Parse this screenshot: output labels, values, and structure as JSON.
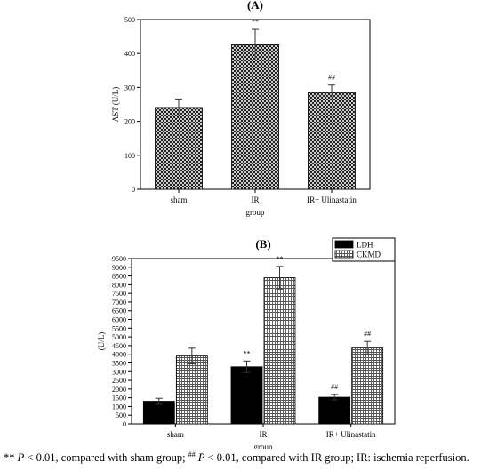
{
  "chart_data": [
    {
      "type": "bar",
      "panel_label": "(A)",
      "categories": [
        "sham",
        "IR",
        "IR+ Ulinastatin"
      ],
      "series": [
        {
          "values": [
            241,
            426,
            285
          ],
          "errors": [
            25,
            45,
            22
          ],
          "pattern": "crosshatch"
        }
      ],
      "annotations": [
        "",
        "**",
        "##"
      ],
      "xlabel": "group",
      "ylabel": "AST (U/L)",
      "ylim": [
        0,
        500
      ],
      "yticks": [
        0,
        100,
        200,
        300,
        400,
        500
      ],
      "grid": false,
      "legend": "none"
    },
    {
      "type": "bar",
      "panel_label": "(B)",
      "categories": [
        "sham",
        "IR",
        "IR+ Ulinastatin"
      ],
      "series": [
        {
          "name": "LDH",
          "values": [
            1300,
            3280,
            1530
          ],
          "errors": [
            170,
            330,
            150
          ],
          "color": "#000000"
        },
        {
          "name": "CKMD",
          "values": [
            3900,
            8400,
            4360
          ],
          "errors": [
            450,
            650,
            380
          ],
          "pattern": "grid"
        }
      ],
      "annotations": [
        [
          "",
          ""
        ],
        [
          "**",
          "**"
        ],
        [
          "##",
          "##"
        ]
      ],
      "xlabel": "group",
      "ylabel": "(U/L)",
      "ylim": [
        0,
        9500
      ],
      "yticks": [
        0,
        500,
        1000,
        1500,
        2000,
        2500,
        3000,
        3500,
        4000,
        4500,
        5000,
        5500,
        6000,
        6500,
        7000,
        7500,
        8000,
        8500,
        9000,
        9500
      ],
      "grid": false,
      "legend": "top-right"
    }
  ],
  "footnote": {
    "stars": "**",
    "p": "P",
    "part1": " < 0.01, compared with sham group; ",
    "hashes": "##",
    "part2": " < 0.01, compared with IR group; IR: ischemia reperfusion."
  }
}
